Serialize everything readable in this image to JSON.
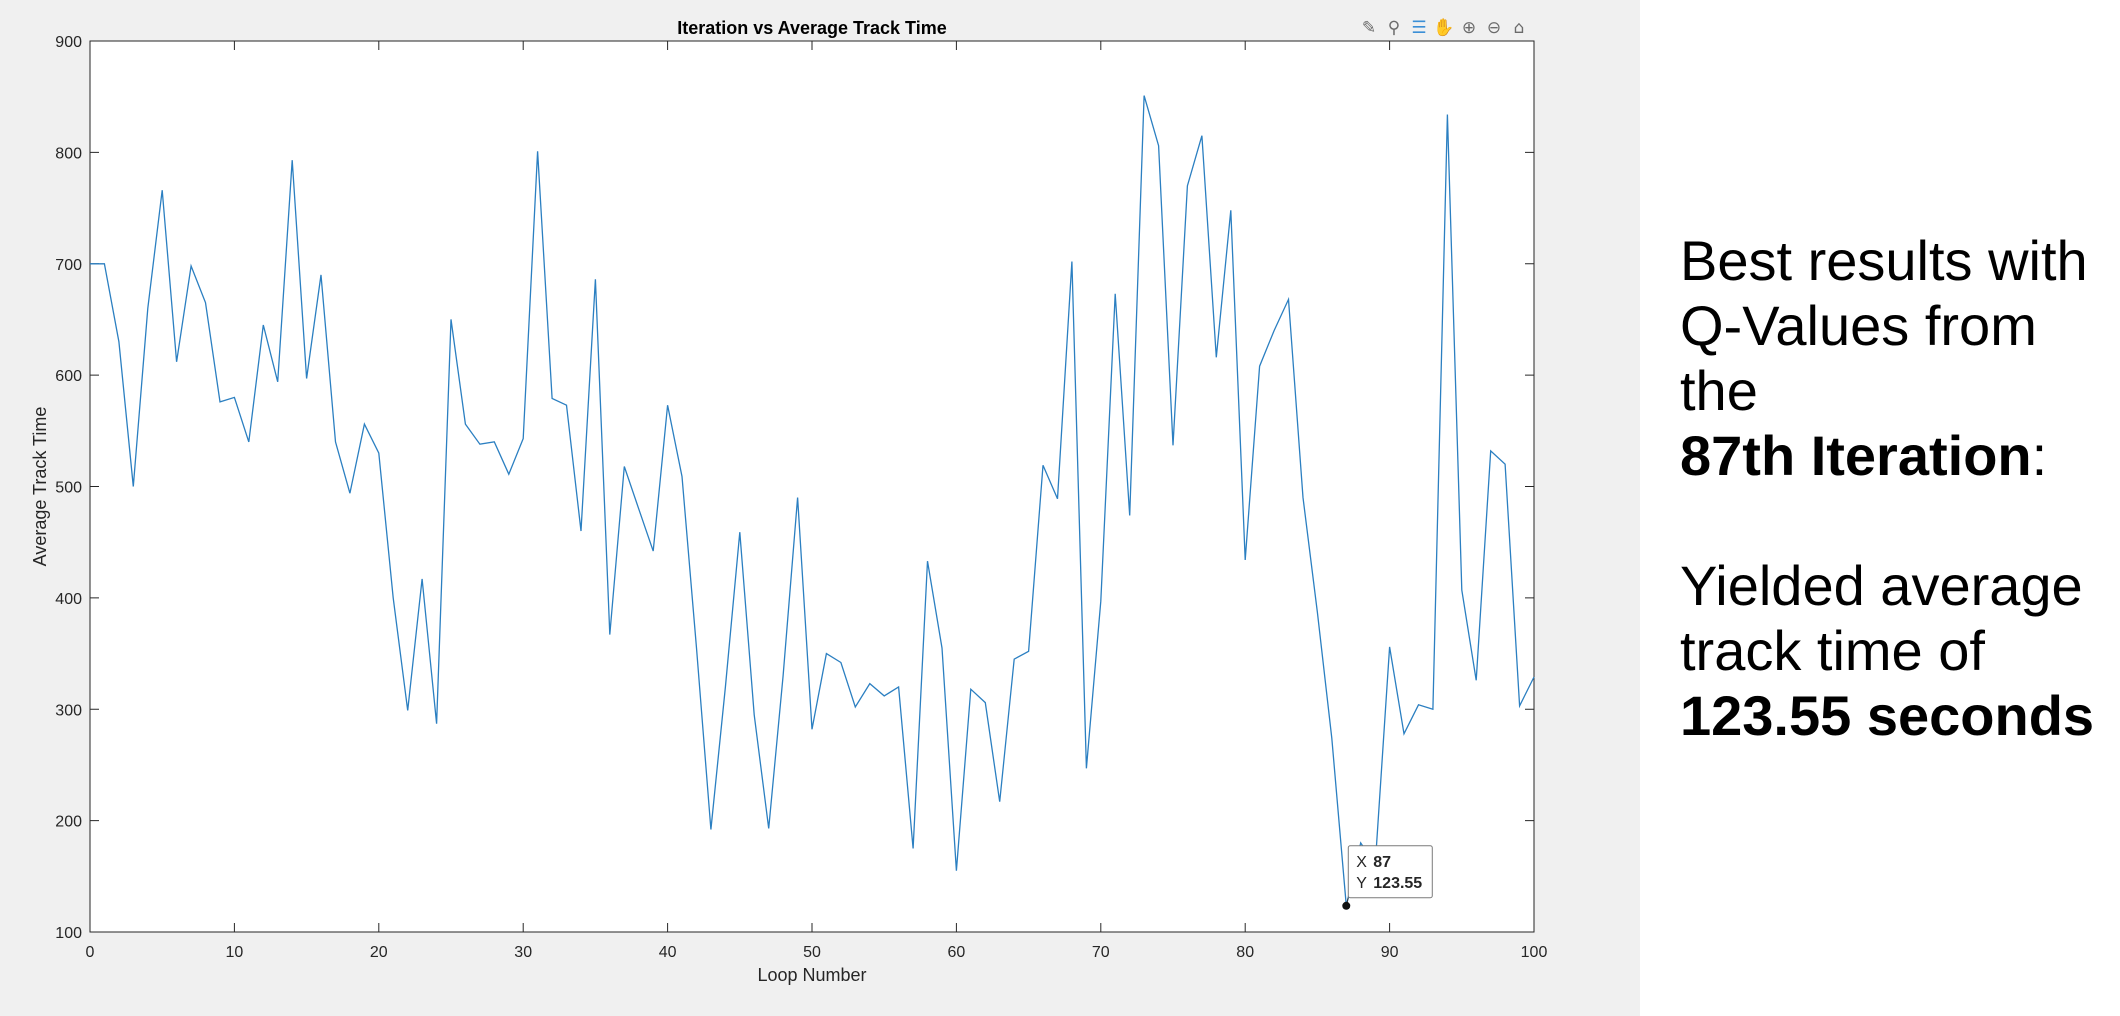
{
  "colors": {
    "line": "#2b7fc1",
    "tip_value": "#1a8fe0",
    "figure_bg": "#f0f0f0"
  },
  "toolbar": {
    "icons": [
      "brush-icon",
      "data-tip-icon",
      "data-cursor-icon",
      "pan-icon",
      "zoom-in-icon",
      "zoom-out-icon",
      "home-icon"
    ]
  },
  "annotation": {
    "line1": "Best results with",
    "line2": "Q-Values from the",
    "line3_bold": "87th Iteration",
    "line3_rest": ":",
    "line4": "Yielded average",
    "line5": "track time of",
    "line6_bold": "123.55 seconds"
  },
  "datatip": {
    "x_label": "X",
    "x_value": "87",
    "y_label": "Y",
    "y_value": "123.55"
  },
  "chart_data": {
    "type": "line",
    "title": "Iteration vs Average Track Time",
    "xlabel": "Loop Number",
    "ylabel": "Average Track Time",
    "xlim": [
      0,
      100
    ],
    "ylim": [
      100,
      900
    ],
    "xticks": [
      0,
      10,
      20,
      30,
      40,
      50,
      60,
      70,
      80,
      90,
      100
    ],
    "yticks": [
      100,
      200,
      300,
      400,
      500,
      600,
      700,
      800,
      900
    ],
    "grid": false,
    "series": [
      {
        "x": [
          0,
          1,
          2,
          3,
          4,
          5,
          6,
          7,
          8,
          9,
          10,
          11,
          12,
          13,
          14,
          15,
          16,
          17,
          18,
          19,
          20,
          21,
          22,
          23,
          24,
          25,
          26,
          27,
          28,
          29,
          30,
          31,
          32,
          33,
          34,
          35,
          36,
          37,
          38,
          39,
          40,
          41,
          42,
          43,
          44,
          45,
          46,
          47,
          48,
          49,
          50,
          51,
          52,
          53,
          54,
          55,
          56,
          57,
          58,
          59,
          60,
          61,
          62,
          63,
          64,
          65,
          66,
          67,
          68,
          69,
          70,
          71,
          72,
          73,
          74,
          75,
          76,
          77,
          78,
          79,
          80,
          81,
          82,
          83,
          84,
          85,
          86,
          87,
          88,
          89,
          90,
          91,
          92,
          93,
          94,
          95,
          96,
          97,
          98,
          99,
          100
        ],
        "y": [
          700,
          700,
          630,
          500,
          660,
          766,
          612,
          698,
          665,
          576,
          580,
          540,
          645,
          594,
          793,
          597,
          690,
          540,
          494,
          556,
          530,
          400,
          299,
          417,
          287,
          650,
          556,
          538,
          540,
          511,
          543,
          801,
          579,
          573,
          460,
          686,
          367,
          518,
          480,
          442,
          573,
          509,
          355,
          192,
          320,
          459,
          295,
          193,
          330,
          490,
          282,
          350,
          342,
          302,
          323,
          312,
          320,
          175,
          433,
          355,
          155,
          318,
          306,
          217,
          345,
          352,
          519,
          489,
          702,
          247,
          397,
          673,
          474,
          851,
          806,
          537,
          770,
          815,
          616,
          748,
          434,
          608,
          640,
          668,
          490,
          387,
          274,
          123.55,
          180,
          160,
          356,
          278,
          304,
          300,
          834,
          407,
          326,
          532,
          520,
          303,
          329
        ]
      }
    ]
  }
}
